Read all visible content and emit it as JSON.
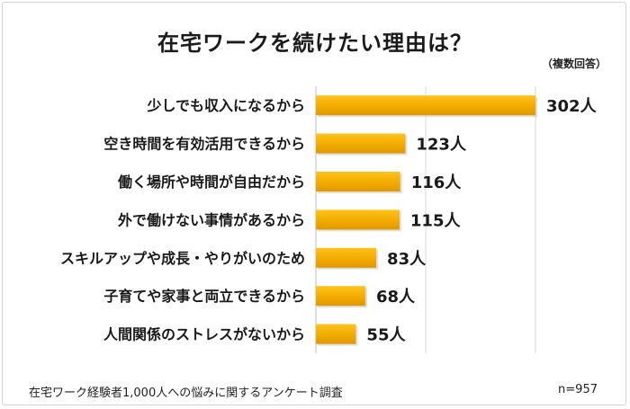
{
  "title": "在宅ワークを続けたい理由は？",
  "note": "（複数回答）",
  "footer": {
    "source": "在宅ワーク経験者1,000人への悩みに関するアンケート調査",
    "sample": "n=957"
  },
  "chart_data": {
    "type": "bar",
    "orientation": "horizontal",
    "title": "在宅ワークを続けたい理由は？",
    "categories": [
      "少しでも収入になるから",
      "空き時間を有効活用できるから",
      "働く場所や時間が自由だから",
      "外で働けない事情があるから",
      "スキルアップや成長・やりがいのため",
      "子育てや家事と両立できるから",
      "人間関係のストレスがないから"
    ],
    "values": [
      302,
      123,
      116,
      115,
      83,
      68,
      55
    ],
    "labels": [
      "302人",
      "123人",
      "116人",
      "115人",
      "83人",
      "68人",
      "55人"
    ],
    "xlim": [
      0,
      302
    ],
    "grid": true,
    "bar_color": "#f2ab00"
  }
}
